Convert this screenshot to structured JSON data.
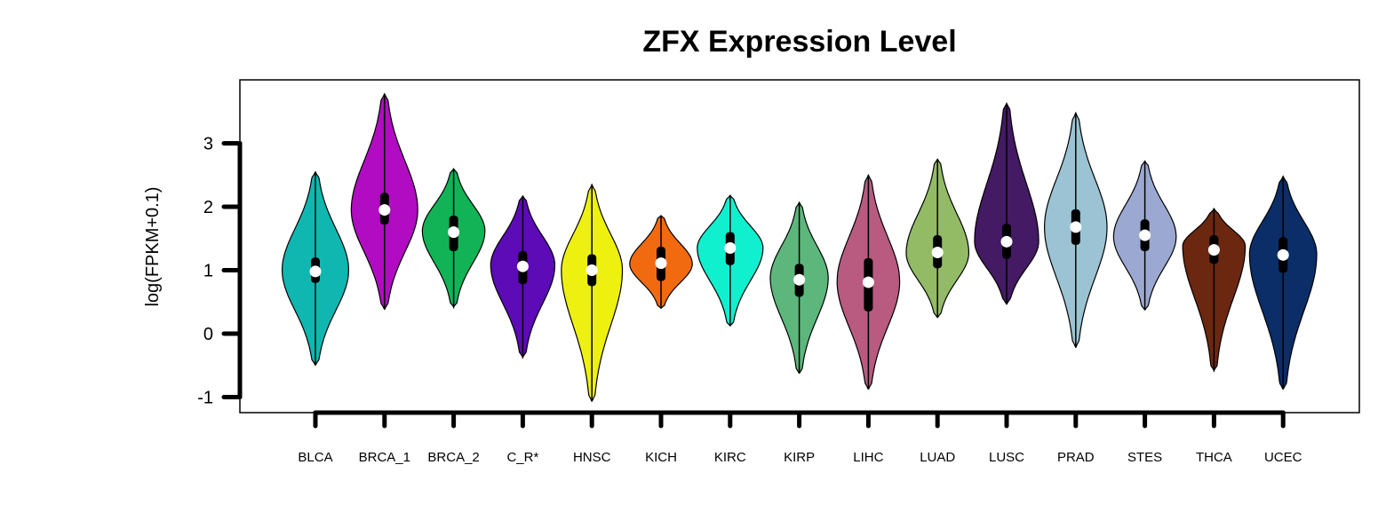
{
  "chart_data": {
    "type": "violin",
    "title": "ZFX Expression Level",
    "xlabel": "",
    "ylabel": "log(FPKM+0.1)",
    "ylim": [
      -1.25,
      4.0
    ],
    "yticks": [
      -1,
      0,
      1,
      2,
      3
    ],
    "grid": false,
    "legend": "none",
    "categories": [
      "BLCA",
      "BRCA_1",
      "BRCA_2",
      "C_R*",
      "HNSC",
      "KICH",
      "KIRC",
      "KIRP",
      "LIHC",
      "LUAD",
      "LUSC",
      "PRAD",
      "STES",
      "THCA",
      "UCEC"
    ],
    "series": [
      {
        "color": "#10b7b1",
        "min": -0.5,
        "max": 2.55,
        "q1": 0.8,
        "median": 0.98,
        "q3": 1.2,
        "mode": 1.0,
        "halfwidth": 0.85
      },
      {
        "color": "#b10cc1",
        "min": 0.38,
        "max": 3.78,
        "q1": 1.72,
        "median": 1.95,
        "q3": 2.22,
        "mode": 1.95,
        "halfwidth": 0.85
      },
      {
        "color": "#11b356",
        "min": 0.42,
        "max": 2.6,
        "q1": 1.3,
        "median": 1.6,
        "q3": 1.86,
        "mode": 1.62,
        "halfwidth": 0.8
      },
      {
        "color": "#5c0bb7",
        "min": -0.37,
        "max": 2.17,
        "q1": 0.78,
        "median": 1.06,
        "q3": 1.3,
        "mode": 1.08,
        "halfwidth": 0.82
      },
      {
        "color": "#eef10f",
        "min": -1.07,
        "max": 2.35,
        "q1": 0.75,
        "median": 1.0,
        "q3": 1.25,
        "mode": 1.0,
        "halfwidth": 0.78
      },
      {
        "color": "#f26a0f",
        "min": 0.4,
        "max": 1.86,
        "q1": 0.83,
        "median": 1.11,
        "q3": 1.37,
        "mode": 1.1,
        "halfwidth": 0.8
      },
      {
        "color": "#10f0cf",
        "min": 0.12,
        "max": 2.18,
        "q1": 1.08,
        "median": 1.35,
        "q3": 1.6,
        "mode": 1.35,
        "halfwidth": 0.84
      },
      {
        "color": "#5db77d",
        "min": -0.63,
        "max": 2.07,
        "q1": 0.58,
        "median": 0.85,
        "q3": 1.1,
        "mode": 0.88,
        "halfwidth": 0.74
      },
      {
        "color": "#b95a80",
        "min": -0.88,
        "max": 2.5,
        "q1": 0.35,
        "median": 0.81,
        "q3": 1.19,
        "mode": 0.82,
        "halfwidth": 0.8
      },
      {
        "color": "#93bb66",
        "min": 0.25,
        "max": 2.75,
        "q1": 1.03,
        "median": 1.28,
        "q3": 1.55,
        "mode": 1.27,
        "halfwidth": 0.8
      },
      {
        "color": "#431a63",
        "min": 0.46,
        "max": 3.63,
        "q1": 1.18,
        "median": 1.45,
        "q3": 1.73,
        "mode": 1.45,
        "halfwidth": 0.82
      },
      {
        "color": "#9bc3d3",
        "min": -0.22,
        "max": 3.48,
        "q1": 1.4,
        "median": 1.68,
        "q3": 1.96,
        "mode": 1.68,
        "halfwidth": 0.8
      },
      {
        "color": "#9ba9d2",
        "min": 0.37,
        "max": 2.72,
        "q1": 1.3,
        "median": 1.55,
        "q3": 1.8,
        "mode": 1.53,
        "halfwidth": 0.8
      },
      {
        "color": "#6c2711",
        "min": -0.58,
        "max": 1.97,
        "q1": 1.1,
        "median": 1.32,
        "q3": 1.55,
        "mode": 1.38,
        "halfwidth": 0.8
      },
      {
        "color": "#0b2d68",
        "min": -0.88,
        "max": 2.48,
        "q1": 0.96,
        "median": 1.24,
        "q3": 1.52,
        "mode": 1.25,
        "halfwidth": 0.86
      }
    ]
  }
}
